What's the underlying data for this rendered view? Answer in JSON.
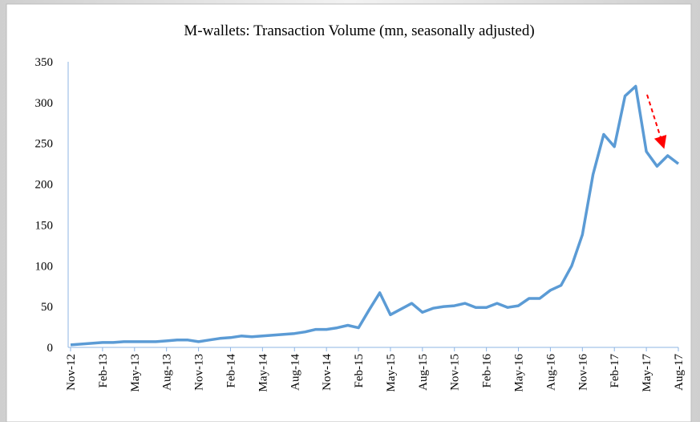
{
  "chart_data": {
    "type": "line",
    "title": "M-wallets: Transaction Volume (mn, seasonally adjusted)",
    "categories": [
      "Nov-12",
      null,
      null,
      "Feb-13",
      null,
      null,
      "May-13",
      null,
      null,
      "Aug-13",
      null,
      null,
      "Nov-13",
      null,
      null,
      "Feb-14",
      null,
      null,
      "May-14",
      null,
      null,
      "Aug-14",
      null,
      null,
      "Nov-14",
      null,
      null,
      "Feb-15",
      null,
      null,
      "May-15",
      null,
      null,
      "Aug-15",
      null,
      null,
      "Nov-15",
      null,
      null,
      "Feb-16",
      null,
      null,
      "May-16",
      null,
      null,
      "Aug-16",
      null,
      null,
      "Nov-16",
      null,
      null,
      "Feb-17",
      null,
      null,
      "May-17",
      null,
      null,
      "Aug-17"
    ],
    "series": [
      {
        "name": "M-wallets transaction volume",
        "color": "#5b9bd5",
        "values": [
          3,
          4,
          5,
          6,
          6,
          7,
          7,
          7,
          7,
          8,
          9,
          9,
          7,
          9,
          11,
          12,
          14,
          13,
          14,
          15,
          16,
          17,
          19,
          22,
          22,
          24,
          27,
          24,
          46,
          67,
          40,
          47,
          54,
          43,
          48,
          50,
          51,
          54,
          49,
          49,
          54,
          49,
          51,
          60,
          60,
          70,
          76,
          100,
          138,
          212,
          261,
          246,
          308,
          320,
          240,
          222,
          235,
          225
        ]
      }
    ],
    "ylim": [
      0,
      350
    ],
    "yticks": [
      0,
      50,
      100,
      150,
      200,
      250,
      300,
      350
    ],
    "grid": false
  }
}
